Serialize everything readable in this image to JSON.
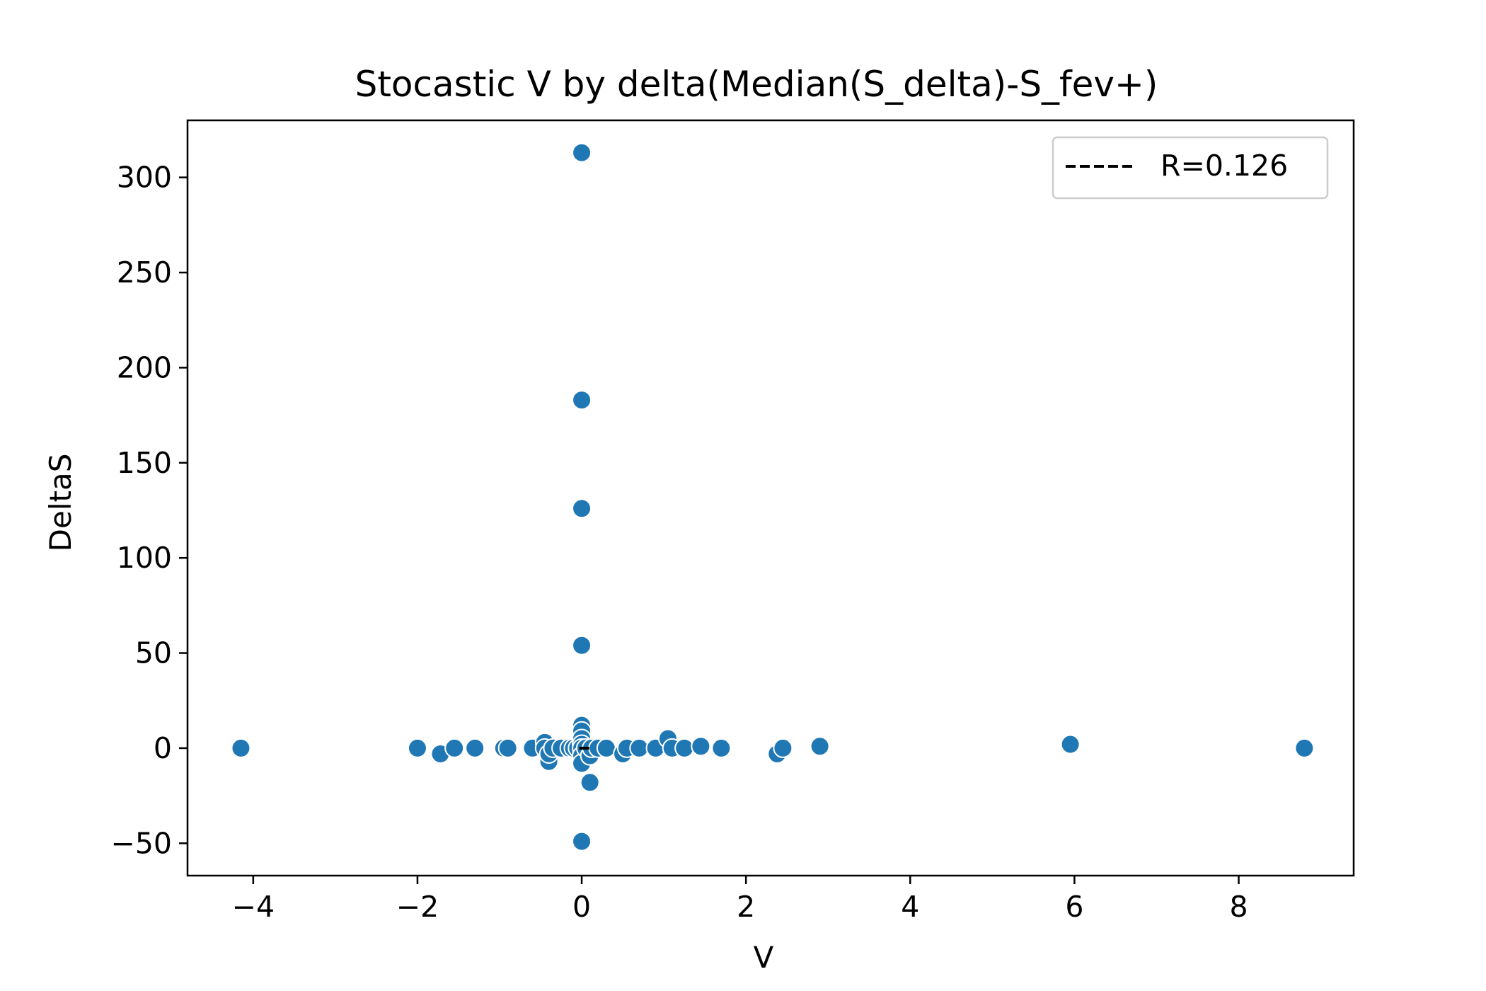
{
  "chart_data": {
    "type": "scatter",
    "title": "Stocastic V by delta(Median(S_delta)-S_fev+)",
    "xlabel": "V",
    "ylabel": "DeltaS",
    "xlim": [
      -4.8,
      9.4
    ],
    "ylim": [
      -67,
      330
    ],
    "xticks": [
      -4,
      -2,
      0,
      2,
      4,
      6,
      8
    ],
    "xtick_labels": [
      "−4",
      "−2",
      "0",
      "2",
      "4",
      "6",
      "8"
    ],
    "yticks": [
      -50,
      0,
      50,
      100,
      150,
      200,
      250,
      300
    ],
    "ytick_labels": [
      "−50",
      "0",
      "50",
      "100",
      "150",
      "200",
      "250",
      "300"
    ],
    "grid": false,
    "legend": {
      "placement": "top-right",
      "entries": [
        {
          "label": "R=0.126",
          "style": "dashed-line",
          "color": "#000000"
        }
      ]
    },
    "series": [
      {
        "color": "#1f77b4",
        "points": [
          [
            -4.15,
            0
          ],
          [
            -2.0,
            0
          ],
          [
            -1.72,
            -3
          ],
          [
            -1.55,
            0
          ],
          [
            -1.3,
            0
          ],
          [
            -0.95,
            0
          ],
          [
            -0.9,
            0
          ],
          [
            -0.6,
            0
          ],
          [
            -0.45,
            3
          ],
          [
            -0.45,
            0
          ],
          [
            -0.4,
            -7
          ],
          [
            -0.4,
            -3
          ],
          [
            -0.35,
            0
          ],
          [
            -0.25,
            0
          ],
          [
            -0.15,
            0
          ],
          [
            -0.1,
            0
          ],
          [
            -0.05,
            0
          ],
          [
            0,
            313
          ],
          [
            0,
            183
          ],
          [
            0,
            126
          ],
          [
            0,
            54
          ],
          [
            0,
            12
          ],
          [
            0,
            9
          ],
          [
            0,
            5
          ],
          [
            0,
            2
          ],
          [
            0,
            0
          ],
          [
            0,
            -4
          ],
          [
            0,
            -8
          ],
          [
            0,
            -49
          ],
          [
            0.05,
            0
          ],
          [
            0.1,
            -18
          ],
          [
            0.1,
            -4
          ],
          [
            0.12,
            0
          ],
          [
            0.2,
            0
          ],
          [
            0.3,
            0
          ],
          [
            0.5,
            -3
          ],
          [
            0.55,
            0
          ],
          [
            0.7,
            0
          ],
          [
            0.9,
            0
          ],
          [
            1.05,
            5
          ],
          [
            1.1,
            0
          ],
          [
            1.25,
            0
          ],
          [
            1.45,
            1
          ],
          [
            1.7,
            0
          ],
          [
            2.38,
            -3
          ],
          [
            2.45,
            0
          ],
          [
            2.9,
            1
          ],
          [
            5.95,
            2
          ],
          [
            8.8,
            0
          ]
        ]
      }
    ],
    "regression_line": {
      "x": [
        -0.03,
        0.12
      ],
      "y": [
        0,
        0
      ],
      "color": "#000000",
      "style": "dashed"
    }
  }
}
